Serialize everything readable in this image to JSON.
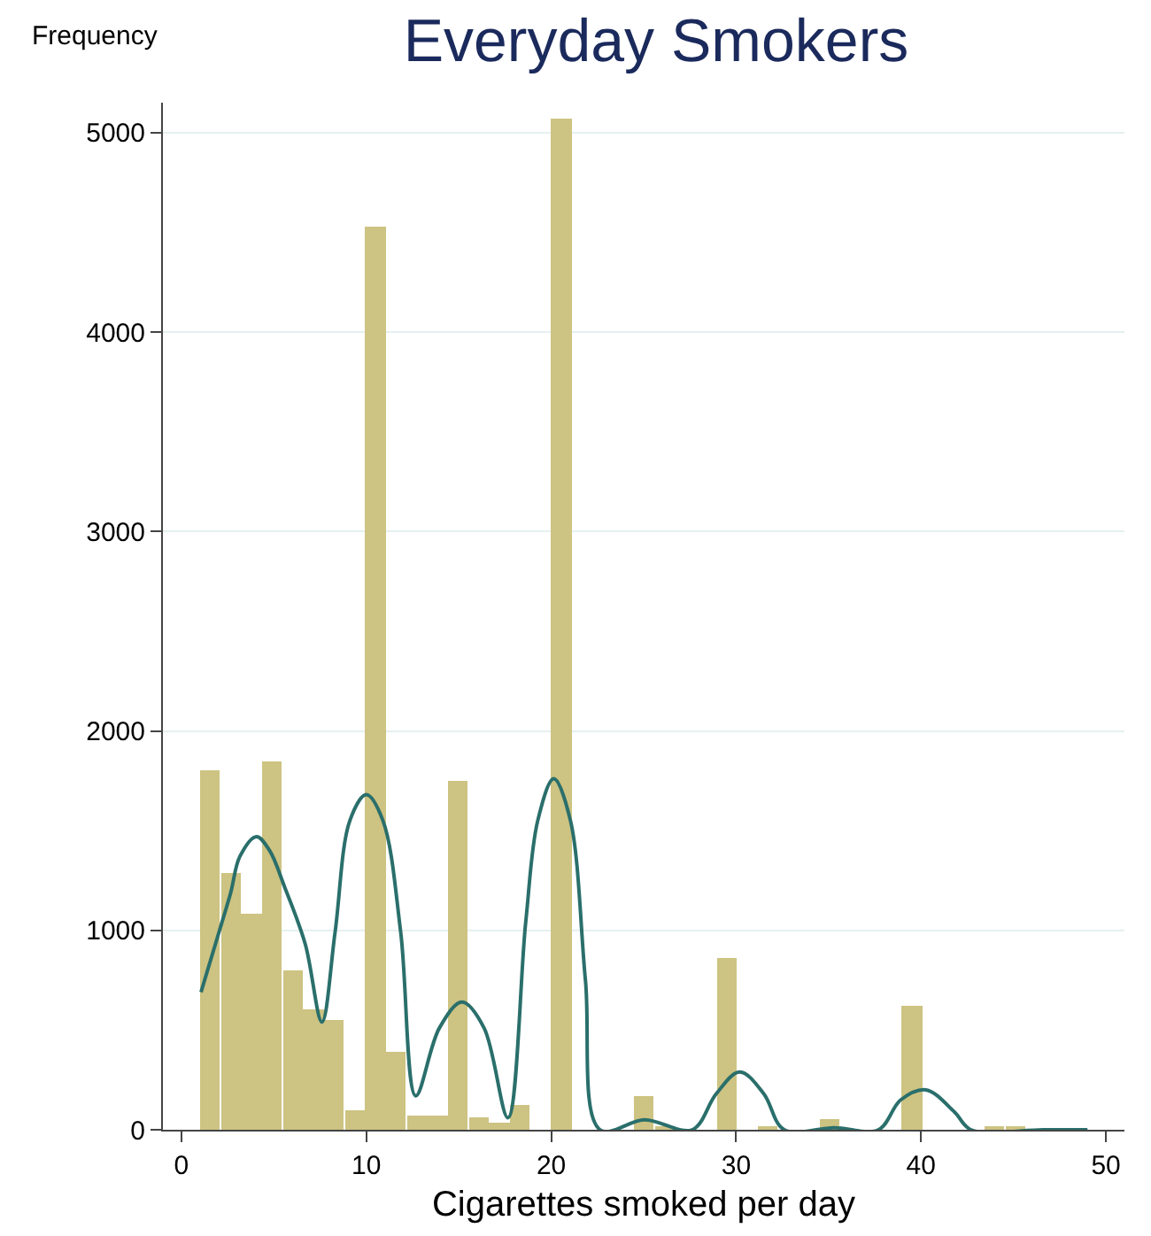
{
  "chart_data": {
    "type": "histogram",
    "title": "Everyday Smokers",
    "xlabel": "Cigarettes smoked per day",
    "ylabel": "Frequency",
    "series": [
      {
        "color": "#cdc382",
        "bins": [
          1,
          2.12,
          3.23,
          4.35,
          5.47,
          6.58,
          7.7,
          8.81,
          9.93,
          11.05,
          12.16,
          13.28,
          14.4,
          15.51,
          16.63,
          17.74,
          18.86,
          19.98,
          21.09,
          22.21,
          23.33,
          24.44,
          25.56,
          26.67,
          27.79,
          28.91,
          30.02,
          31.14,
          32.26,
          33.37,
          34.49,
          35.6,
          36.72,
          37.84,
          38.95,
          40.07,
          41.19,
          42.3,
          43.42,
          44.53,
          45.65,
          46.77,
          47.88,
          49
        ],
        "values": [
          1800,
          1290,
          1080,
          1850,
          800,
          600,
          550,
          100,
          4530,
          390,
          70,
          70,
          1750,
          60,
          40,
          120,
          0,
          5070,
          0,
          0,
          0,
          170,
          10,
          0,
          0,
          860,
          0,
          10,
          0,
          0,
          50,
          0,
          0,
          0,
          620,
          0,
          0,
          0,
          10,
          10,
          0,
          0,
          null
        ]
      },
      {
        "type": "line",
        "color": "#2a6f6b",
        "x": [
          1.06,
          2.03,
          2.67,
          3.16,
          4.06,
          4.77,
          5.57,
          6.7,
          7.6,
          8.31,
          9.11,
          10,
          10.9,
          11.86,
          12.67,
          13.95,
          15.18,
          16.37,
          17.66,
          18.62,
          19.27,
          20.14,
          21.04,
          21.85,
          22.64,
          25.05,
          27.63,
          28.92,
          30.2,
          31.5,
          32.6,
          35.3,
          37.7,
          38.9,
          40.27,
          41.8,
          42.7,
          46.6,
          49
        ],
        "values": [
          690,
          990,
          1190,
          1370,
          1470,
          1400,
          1220,
          930,
          540,
          990,
          1550,
          1680,
          1550,
          990,
          170,
          510,
          640,
          510,
          60,
          1040,
          1550,
          1760,
          1550,
          750,
          0,
          50,
          0,
          180,
          290,
          180,
          0,
          10,
          0,
          150,
          200,
          90,
          0,
          0,
          0
        ]
      }
    ],
    "xlim": [
      -1,
      51
    ],
    "xticks": [
      0,
      10,
      20,
      30,
      40,
      50
    ],
    "ylim": [
      0,
      5150
    ],
    "yticks": [
      0,
      1000,
      2000,
      3000,
      4000,
      5000
    ],
    "grid": "y"
  }
}
